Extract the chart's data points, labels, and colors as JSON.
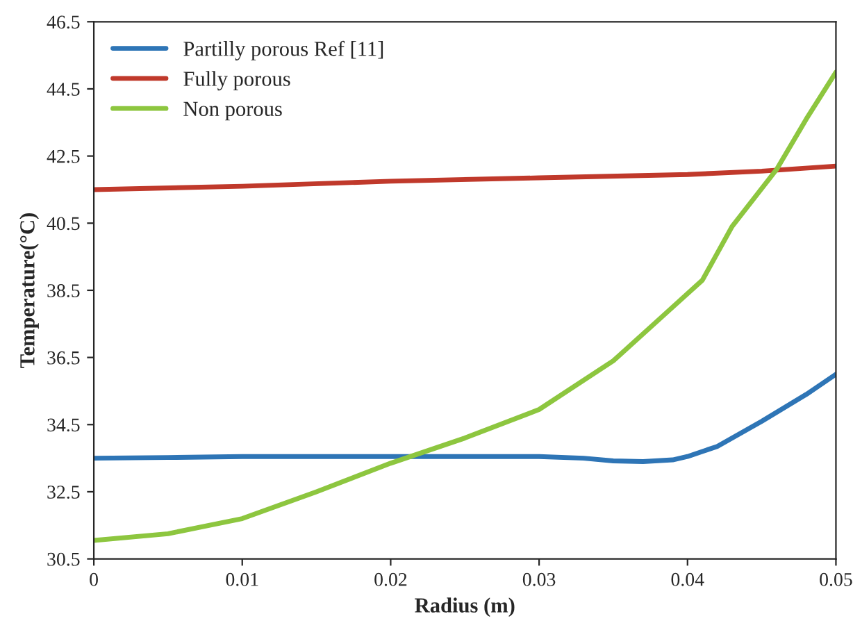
{
  "chart_data": {
    "type": "line",
    "xlabel": "Radius (m)",
    "ylabel": "Temperature(°C)",
    "xlim": [
      0,
      0.05
    ],
    "xticks": [
      0,
      0.01,
      0.02,
      0.03,
      0.04,
      0.05
    ],
    "ylim": [
      30.5,
      46.5
    ],
    "yticks": [
      30.5,
      32.5,
      34.5,
      36.5,
      38.5,
      40.5,
      42.5,
      44.5,
      46.5
    ],
    "grid": false,
    "legend": "top left",
    "marker": "none",
    "line_style": "solid",
    "series": [
      {
        "name": "Partilly porous Ref [11]",
        "color": "#2e75b6",
        "x": [
          0,
          0.005,
          0.01,
          0.015,
          0.02,
          0.025,
          0.03,
          0.033,
          0.035,
          0.037,
          0.039,
          0.04,
          0.042,
          0.045,
          0.048,
          0.05
        ],
        "values": [
          33.5,
          33.52,
          33.55,
          33.55,
          33.55,
          33.55,
          33.55,
          33.5,
          33.42,
          33.4,
          33.45,
          33.55,
          33.85,
          34.6,
          35.4,
          36.0
        ]
      },
      {
        "name": "Fully porous",
        "color": "#c0392b",
        "x": [
          0,
          0.01,
          0.02,
          0.03,
          0.04,
          0.045,
          0.05
        ],
        "values": [
          41.5,
          41.6,
          41.75,
          41.85,
          41.95,
          42.05,
          42.2
        ]
      },
      {
        "name": "Non porous",
        "color": "#8dc63f",
        "x": [
          0,
          0.005,
          0.01,
          0.015,
          0.02,
          0.025,
          0.03,
          0.035,
          0.0385,
          0.041,
          0.043,
          0.046,
          0.048,
          0.05
        ],
        "values": [
          31.05,
          31.25,
          31.7,
          32.5,
          33.35,
          34.1,
          34.95,
          36.4,
          37.8,
          38.8,
          40.4,
          42.1,
          43.6,
          45.0
        ]
      }
    ]
  }
}
